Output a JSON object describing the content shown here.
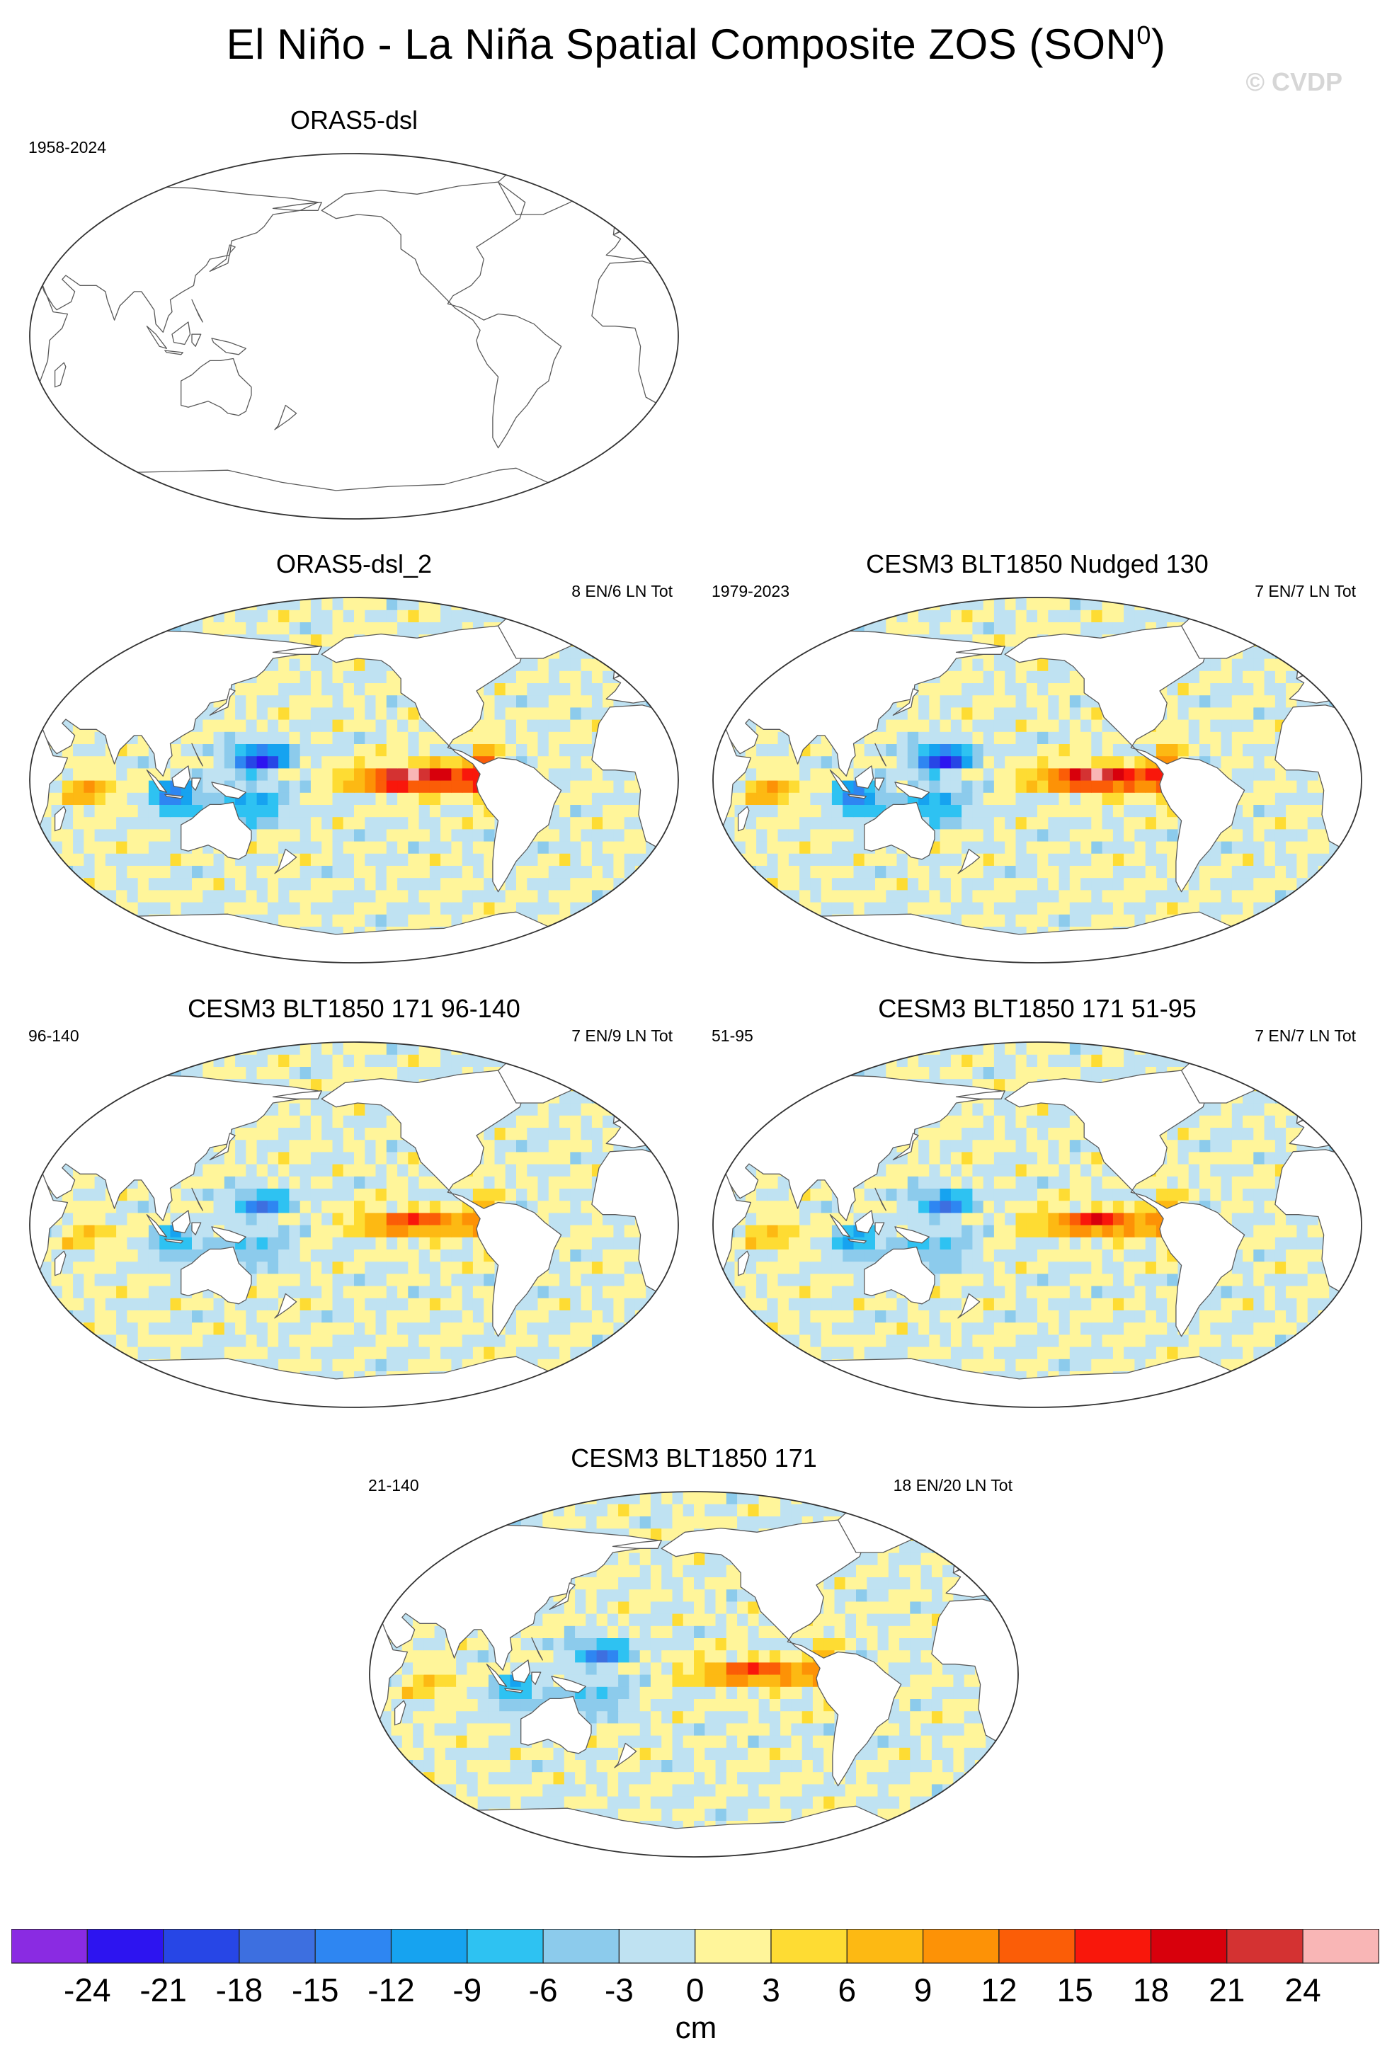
{
  "figure": {
    "title": "El Niño - La Niña Spatial Composite ZOS (SON",
    "title_superscript": "0",
    "title_suffix": ")",
    "watermark": "© CVDP"
  },
  "panels": [
    {
      "id": "p0",
      "title": "ORAS5-dsl",
      "left_label": "1958-2024",
      "right_label": "",
      "filled": false,
      "amplitude": 0
    },
    {
      "id": "p1",
      "title": "ORAS5-dsl_2",
      "left_label": "",
      "right_label": "8 EN/6 LN Tot",
      "filled": true,
      "amplitude": 1.0
    },
    {
      "id": "p2",
      "title": "CESM3 BLT1850 Nudged 130",
      "left_label": "1979-2023",
      "right_label": "7 EN/7 LN Tot",
      "filled": true,
      "amplitude": 0.95
    },
    {
      "id": "p3",
      "title": "CESM3 BLT1850 171 96-140",
      "left_label": "96-140",
      "right_label": "7 EN/9 LN Tot",
      "filled": true,
      "amplitude": 0.6
    },
    {
      "id": "p4",
      "title": "CESM3 BLT1850 171 51-95",
      "left_label": "51-95",
      "right_label": "7 EN/7 LN Tot",
      "filled": true,
      "amplitude": 0.65
    },
    {
      "id": "p5",
      "title": "CESM3 BLT1850 171",
      "left_label": "21-140",
      "right_label": "18 EN/20 LN Tot",
      "filled": true,
      "amplitude": 0.62
    }
  ],
  "colorbar": {
    "units": "cm",
    "levels": [
      "-24",
      "-21",
      "-18",
      "-15",
      "-12",
      "-9",
      "-6",
      "-3",
      "0",
      "3",
      "6",
      "9",
      "12",
      "15",
      "18",
      "21",
      "24"
    ],
    "colors": [
      "#8a2be2",
      "#2d14f0",
      "#2746e6",
      "#3d6fe0",
      "#2e86f2",
      "#16a3f0",
      "#2ec2f2",
      "#8ccbec",
      "#bfe2f2",
      "#fff59a",
      "#fedc33",
      "#fdb913",
      "#fd9206",
      "#fb5d07",
      "#f9170b",
      "#d8000c",
      "#d43232",
      "#f9b6b6"
    ]
  }
}
